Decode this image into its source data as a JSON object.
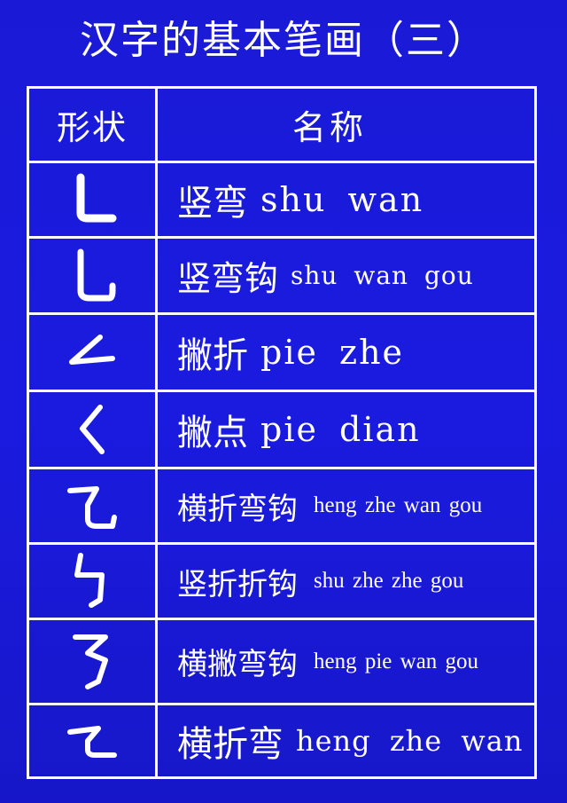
{
  "title": "汉字的基本笔画（三）",
  "table": {
    "header": {
      "shape": "形状",
      "name": "名称"
    },
    "rows": [
      {
        "icon": "shu-wan-stroke-icon",
        "chinese": "竖弯",
        "pinyin": "shu wan"
      },
      {
        "icon": "shu-wan-gou-stroke-icon",
        "chinese": "竖弯钩",
        "pinyin": "shu wan gou"
      },
      {
        "icon": "pie-zhe-stroke-icon",
        "chinese": "撇折",
        "pinyin": "pie zhe"
      },
      {
        "icon": "pie-dian-stroke-icon",
        "chinese": "撇点",
        "pinyin": "pie dian"
      },
      {
        "icon": "heng-zhe-wan-gou-stroke-icon",
        "chinese": "横折弯钩",
        "pinyin": "heng zhe wan gou"
      },
      {
        "icon": "shu-zhe-zhe-gou-stroke-icon",
        "chinese": "竖折折钩",
        "pinyin": "shu zhe zhe gou"
      },
      {
        "icon": "heng-pie-wan-gou-stroke-icon",
        "chinese": "横撇弯钩",
        "pinyin": "heng pie wan gou"
      },
      {
        "icon": "heng-zhe-wan-stroke-icon",
        "chinese": "横折弯",
        "pinyin": "heng zhe wan"
      }
    ]
  },
  "colors": {
    "background": "#1b1bd8",
    "text": "#ffffff",
    "rules": "#ffffff"
  }
}
